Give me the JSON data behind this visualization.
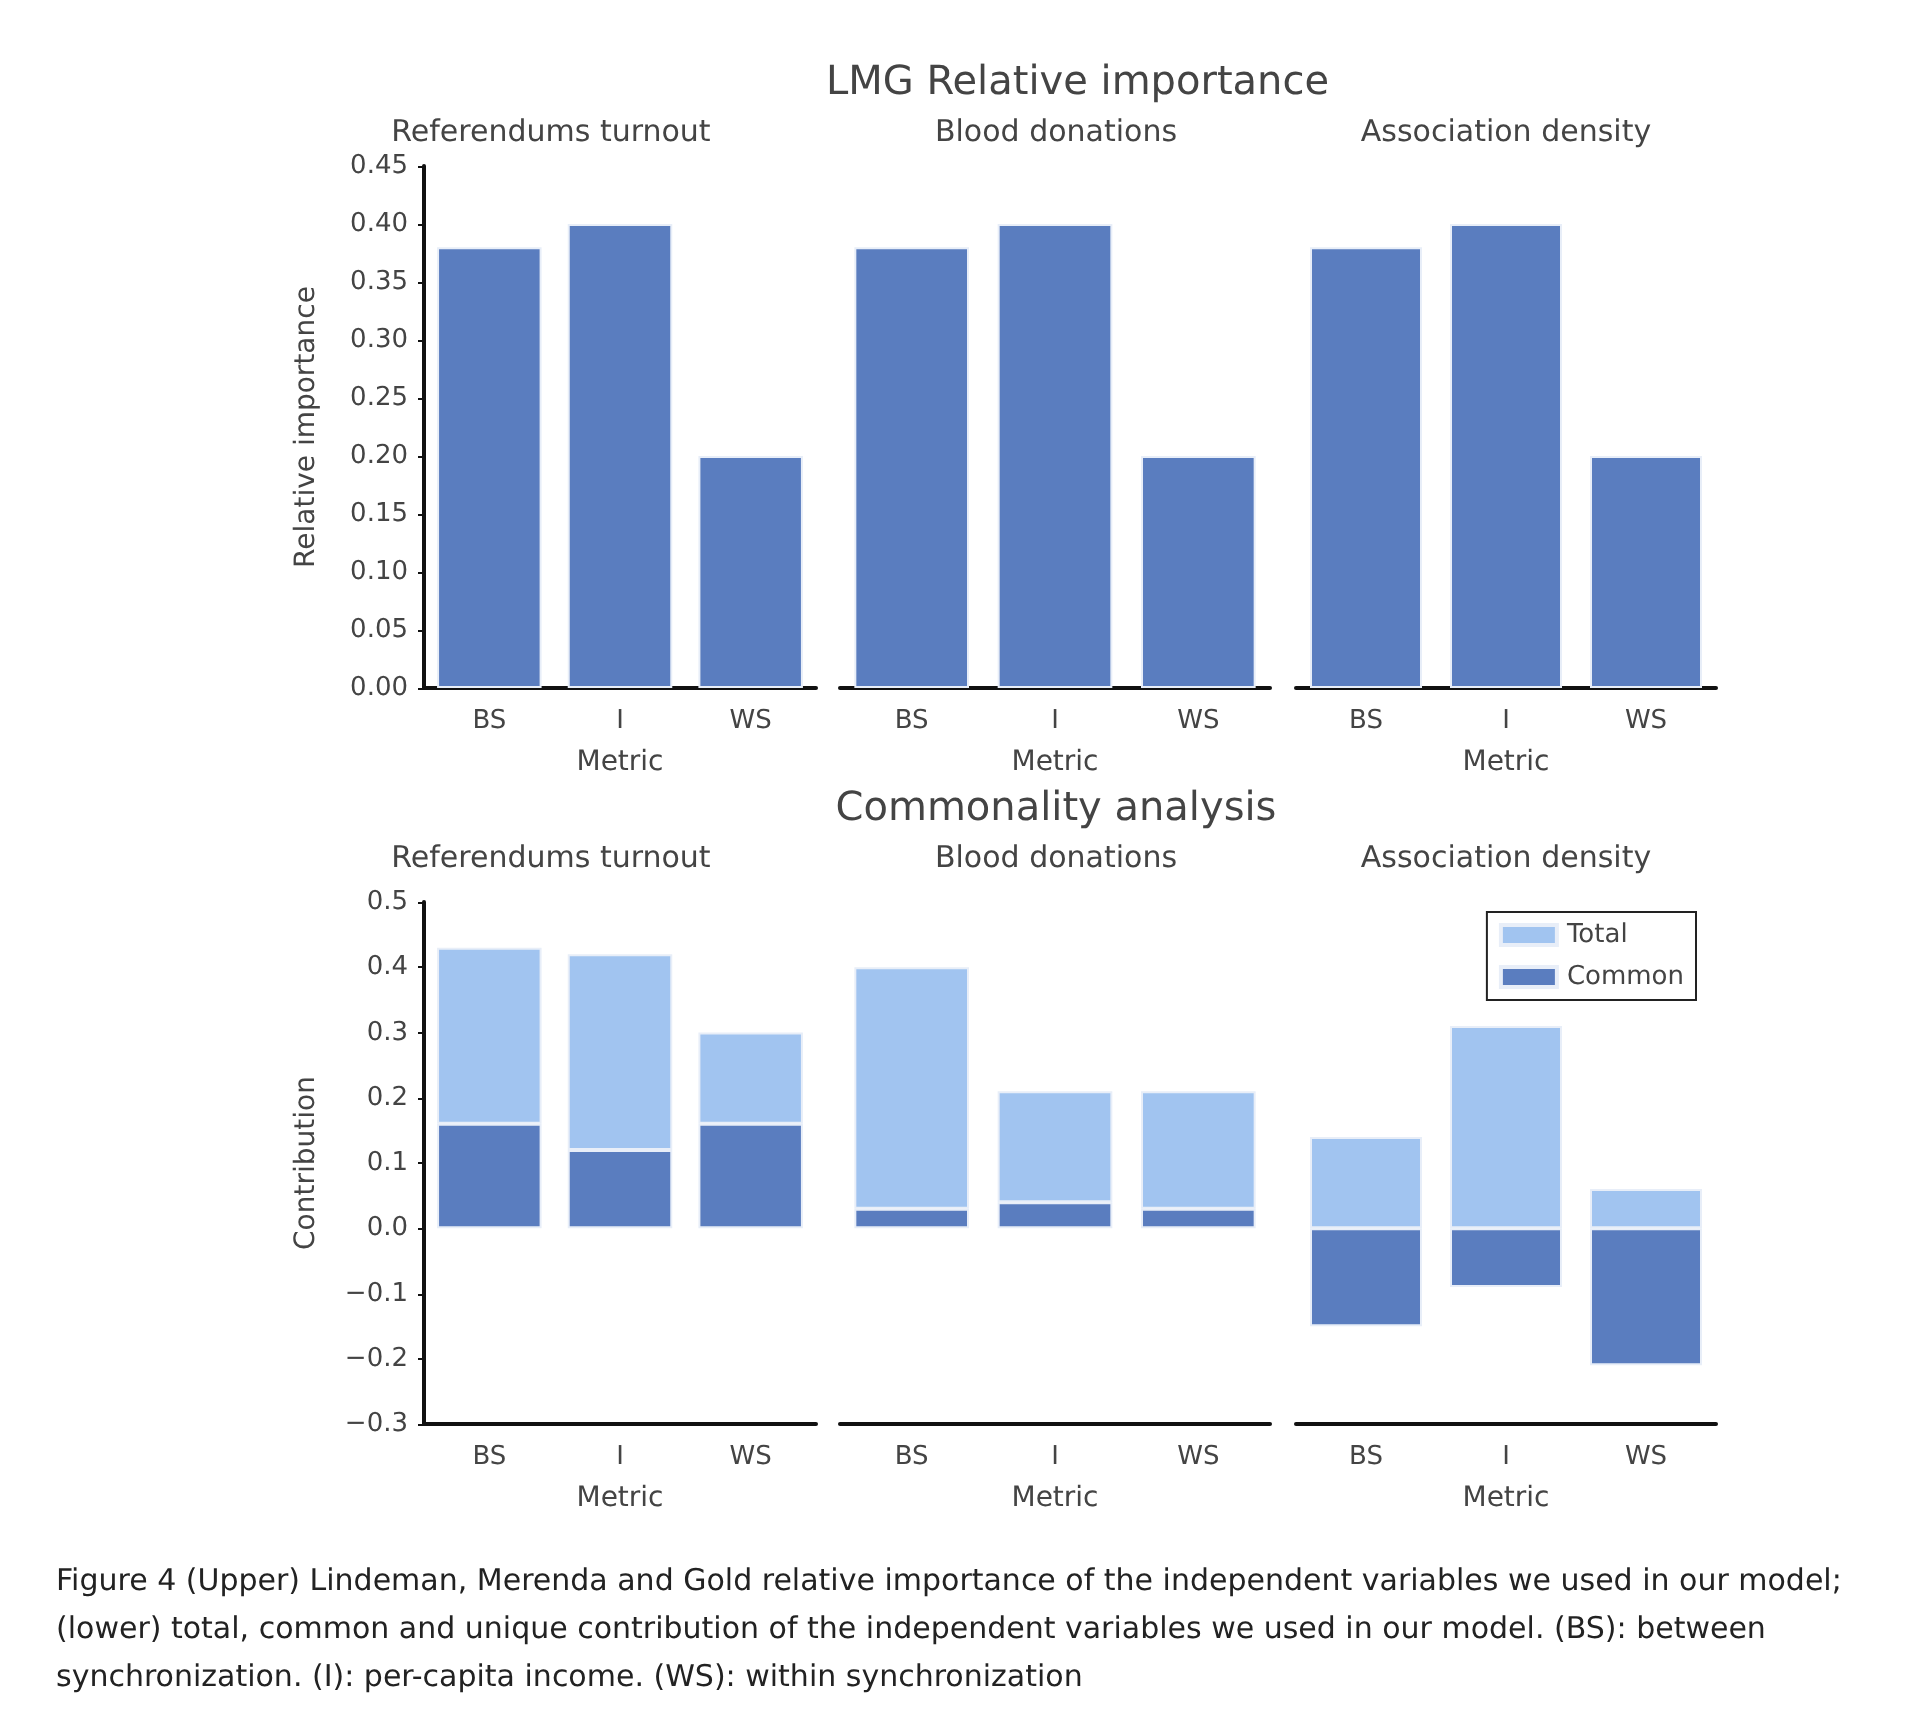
{
  "chart_data": [
    {
      "type": "bar",
      "subtitle": "Referendums turnout",
      "xlabel": "Metric",
      "ylabel": "Relative importance",
      "categories": [
        "BS",
        "I",
        "WS"
      ],
      "values": [
        0.38,
        0.4,
        0.2
      ],
      "color": "#5a7dbf",
      "ylim": [
        0,
        0.45
      ],
      "yticks": [
        {
          "value": 0,
          "label": "0.00"
        },
        {
          "value": 0.05,
          "label": "0.05"
        },
        {
          "value": 0.1,
          "label": "0.10"
        },
        {
          "value": 0.15,
          "label": "0.15"
        },
        {
          "value": 0.2,
          "label": "0.20"
        },
        {
          "value": 0.25,
          "label": "0.25"
        },
        {
          "value": 0.3,
          "label": "0.30"
        },
        {
          "value": 0.35,
          "label": "0.35"
        },
        {
          "value": 0.4,
          "label": "0.40"
        },
        {
          "value": 0.45,
          "label": "0.45"
        }
      ]
    },
    {
      "type": "bar",
      "title": "LMG Relative importance",
      "subtitle": "Blood donations",
      "xlabel": "Metric",
      "categories": [
        "BS",
        "I",
        "WS"
      ],
      "values": [
        0.38,
        0.4,
        0.2
      ],
      "color": "#5a7dbf",
      "ylim": [
        0,
        0.45
      ],
      "tick_labels": "x"
    },
    {
      "type": "bar",
      "subtitle": "Association density",
      "xlabel": "Metric",
      "categories": [
        "BS",
        "I",
        "WS"
      ],
      "values": [
        0.38,
        0.4,
        0.2
      ],
      "color": "#5a7dbf",
      "ylim": [
        0,
        0.45
      ],
      "tick_labels": "x"
    },
    {
      "type": "bar",
      "stacked": true,
      "subtitle": "Referendums turnout",
      "xlabel": "Metric",
      "ylabel": "Contribution",
      "categories": [
        "BS",
        "I",
        "WS"
      ],
      "series": [
        {
          "color": "#5a7dbf",
          "values": [
            0.16,
            0.12,
            0.16
          ]
        },
        {
          "color": "#a1c4f0",
          "values": [
            0.27,
            0.3,
            0.14
          ]
        }
      ],
      "ylim": [
        -0.3,
        0.5
      ],
      "yticks": [
        {
          "value": -0.3,
          "label": "−0.3"
        },
        {
          "value": -0.2,
          "label": "−0.2"
        },
        {
          "value": -0.1,
          "label": "−0.1"
        },
        {
          "value": 0,
          "label": "0.0"
        },
        {
          "value": 0.1,
          "label": "0.1"
        },
        {
          "value": 0.2,
          "label": "0.2"
        },
        {
          "value": 0.3,
          "label": "0.3"
        },
        {
          "value": 0.4,
          "label": "0.4"
        },
        {
          "value": 0.5,
          "label": "0.5"
        }
      ]
    },
    {
      "type": "bar",
      "stacked": true,
      "title": "Commonality analysis",
      "subtitle": "Blood donations",
      "xlabel": "Metric",
      "categories": [
        "BS",
        "I",
        "WS"
      ],
      "series": [
        {
          "color": "#5a7dbf",
          "values": [
            0.03,
            0.04,
            0.03
          ]
        },
        {
          "color": "#a1c4f0",
          "values": [
            0.37,
            0.17,
            0.18
          ]
        }
      ],
      "ylim": [
        -0.3,
        0.5
      ],
      "tick_labels": "x"
    },
    {
      "type": "bar",
      "stacked": true,
      "subtitle": "Association density",
      "xlabel": "Metric",
      "categories": [
        "BS",
        "I",
        "WS"
      ],
      "series": [
        {
          "name": "Common",
          "color": "#5a7dbf",
          "values": [
            -0.15,
            -0.09,
            -0.21
          ]
        },
        {
          "name": "Total",
          "color": "#a1c4f0",
          "values": [
            0.14,
            0.31,
            0.06
          ]
        }
      ],
      "ylim": [
        -0.3,
        0.5
      ],
      "tick_labels": "x",
      "legend": "top right",
      "annotations": [
        "Figure 4  (Upper) Lindeman, Merenda and Gold relative importance of the independent variables we used in our model; (lower) total, common and unique contribution of the independent variables we used in our model. (BS): between synchronization. (I): per-capita income. (WS): within synchronization"
      ]
    }
  ]
}
